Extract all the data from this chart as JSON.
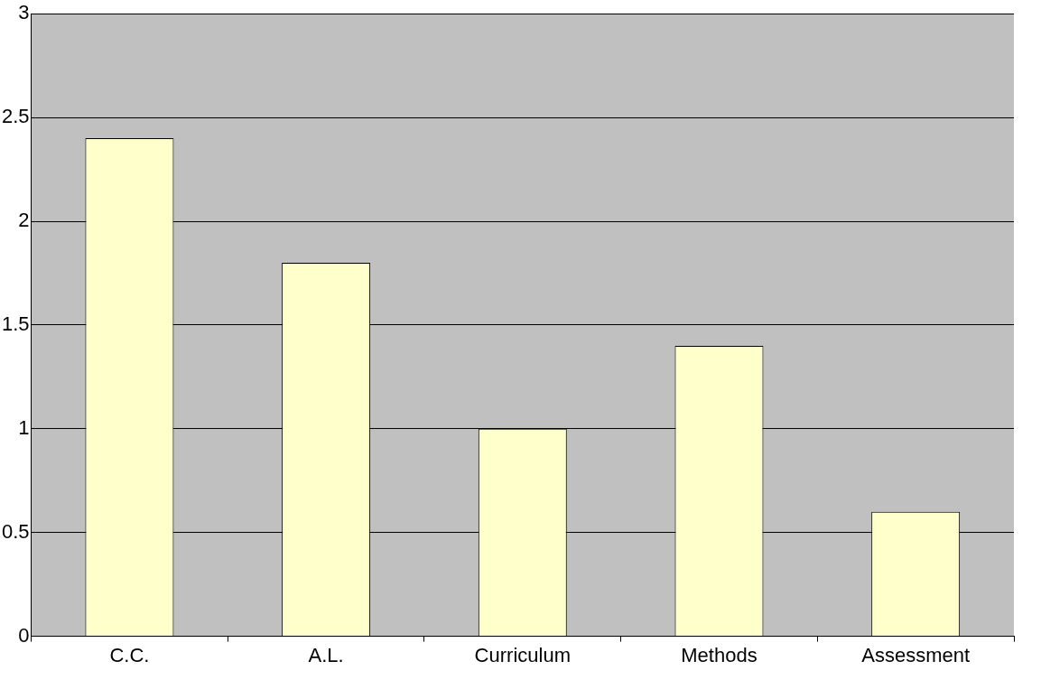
{
  "chart_data": {
    "type": "bar",
    "categories": [
      "C.C.",
      "A.L.",
      "Curriculum",
      "Methods",
      "Assessment"
    ],
    "values": [
      2.4,
      1.8,
      1.0,
      1.4,
      0.6
    ],
    "color": "#ffffcc",
    "ylim": [
      0,
      3
    ],
    "yticks": [
      0,
      0.5,
      1,
      1.5,
      2,
      2.5,
      3
    ],
    "grid": "y"
  }
}
